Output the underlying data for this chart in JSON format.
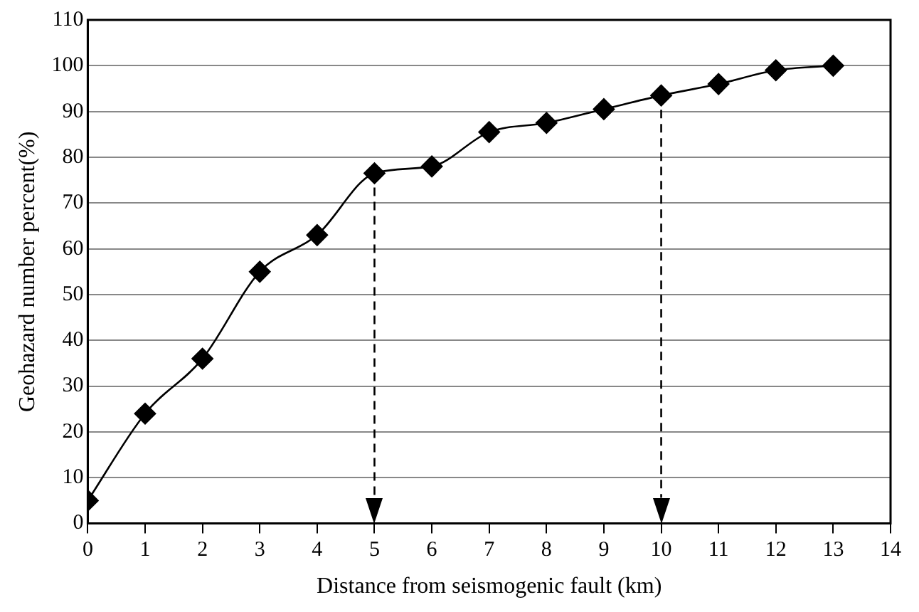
{
  "chart_data": {
    "type": "line",
    "xlabel": "Distance from seismogenic fault (km)",
    "ylabel": "Geohazard number percent(%)",
    "x": [
      0,
      1,
      2,
      3,
      4,
      5,
      6,
      7,
      8,
      9,
      10,
      11,
      12,
      13
    ],
    "series": [
      {
        "color": "#000000",
        "values": [
          5,
          24,
          36,
          55,
          63,
          76.5,
          78,
          85.5,
          87.5,
          90.5,
          93.5,
          96,
          99,
          100
        ]
      }
    ],
    "xlim": [
      0,
      14
    ],
    "xticks": [
      0,
      1,
      2,
      3,
      4,
      5,
      6,
      7,
      8,
      9,
      10,
      11,
      12,
      13,
      14
    ],
    "ylim": [
      0,
      110
    ],
    "yticks": [
      0,
      10,
      20,
      30,
      40,
      50,
      60,
      70,
      80,
      90,
      100,
      110
    ],
    "grid": "y",
    "marker": "diamond",
    "line_style": "solid",
    "legend": false,
    "ref_lines": [
      {
        "axis": "x",
        "value": 5,
        "line_style": "dashed",
        "color": "#000000"
      },
      {
        "axis": "x",
        "value": 10,
        "line_style": "dashed",
        "color": "#000000"
      }
    ]
  }
}
